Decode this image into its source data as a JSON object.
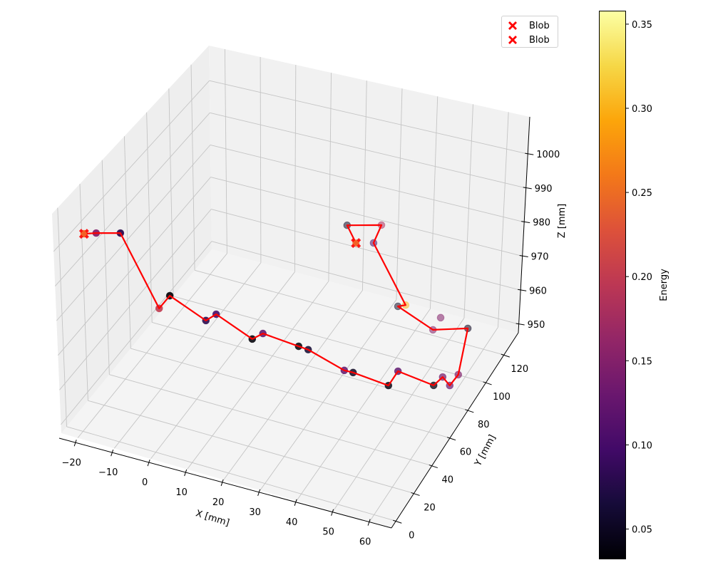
{
  "chart_data": {
    "type": "scatter3d",
    "xlabel": "X [mm]",
    "ylabel": "Y [mm]",
    "zlabel": "Z [mm]",
    "xlim": [
      -24.5,
      66
    ],
    "ylim": [
      -5,
      136
    ],
    "zlim": [
      947.5,
      1010.9
    ],
    "xticks": [
      -20,
      -10,
      0,
      10,
      20,
      30,
      40,
      50,
      60
    ],
    "yticks": [
      0,
      20,
      40,
      60,
      80,
      100,
      120
    ],
    "zticks": [
      950,
      960,
      970,
      980,
      990,
      1000
    ],
    "grid": true,
    "line_color": "#ff0000",
    "colormap": "inferno",
    "track": [
      {
        "x": -21.4,
        "y": 10,
        "z": 1001.3,
        "energy": 0.25
      },
      {
        "x": -18.1,
        "y": 10,
        "z": 1002.5,
        "energy": 0.15
      },
      {
        "x": -11.5,
        "y": 10,
        "z": 1004.5,
        "energy": 0.08
      },
      {
        "x": -3.4,
        "y": 20,
        "z": 980.8,
        "energy": 0.2
      },
      {
        "x": -0.5,
        "y": 20,
        "z": 985.4,
        "energy": 0.033
      },
      {
        "x": 8.1,
        "y": 25,
        "z": 978.7,
        "energy": 0.08
      },
      {
        "x": 10.9,
        "y": 25,
        "z": 981.4,
        "energy": 0.1
      },
      {
        "x": 19.5,
        "y": 30,
        "z": 974.7,
        "energy": 0.035
      },
      {
        "x": 22.4,
        "y": 30,
        "z": 977.2,
        "energy": 0.12
      },
      {
        "x": 30.9,
        "y": 35,
        "z": 974.0,
        "energy": 0.035
      },
      {
        "x": 33.5,
        "y": 35,
        "z": 973.8,
        "energy": 0.06
      },
      {
        "x": 42.1,
        "y": 40,
        "z": 968.3,
        "energy": 0.12
      },
      {
        "x": 44.5,
        "y": 40,
        "z": 968.4,
        "energy": 0.05
      },
      {
        "x": 52.9,
        "y": 45,
        "z": 965.1,
        "energy": 0.04
      },
      {
        "x": 55.5,
        "y": 45,
        "z": 970.1,
        "energy": 0.12
      },
      {
        "x": 60.3,
        "y": 65,
        "z": 959.3,
        "energy": 0.04
      },
      {
        "x": 60.3,
        "y": 75,
        "z": 957.7,
        "energy": 0.14
      },
      {
        "x": 61.0,
        "y": 80,
        "z": 953.4,
        "energy": 0.13
      },
      {
        "x": 62.1,
        "y": 85,
        "z": 954.9,
        "energy": 0.15
      },
      {
        "x": 56.1,
        "y": 120,
        "z": 952.5,
        "energy": 0.05
      },
      {
        "x": 46.6,
        "y": 120,
        "z": 949.2,
        "energy": 0.15
      },
      {
        "x": 34.6,
        "y": 130,
        "z": 948.4,
        "energy": 0.05
      },
      {
        "x": 36.7,
        "y": 130,
        "z": 949.4,
        "energy": 0.3
      },
      {
        "x": 29.2,
        "y": 125,
        "z": 967.4,
        "energy": 0.1
      },
      {
        "x": 31.35,
        "y": 125,
        "z": 973.3,
        "energy": 0.18
      },
      {
        "x": 22.0,
        "y": 125,
        "z": 970.4,
        "energy": 0.05
      },
      {
        "x": 24.4,
        "y": 125,
        "z": 965.9,
        "energy": 0.25
      }
    ],
    "extra_points": [
      {
        "x": 48.7,
        "y": 120,
        "z": 953.4,
        "energy": 0.15
      }
    ],
    "blobs": [
      {
        "x": -21.4,
        "y": 10,
        "z": 1001.3,
        "label": "Blob"
      },
      {
        "x": 24.4,
        "y": 125,
        "z": 965.9,
        "label": "Blob"
      }
    ],
    "blob_color": "#ff0000",
    "legend": {
      "position": "top-right",
      "entries": [
        "Blob",
        "Blob"
      ]
    },
    "colorbar": {
      "label": "Energy",
      "range": [
        0.032,
        0.358
      ],
      "ticks": [
        0.05,
        0.1,
        0.15,
        0.2,
        0.25,
        0.3,
        0.35
      ],
      "tick_labels": [
        "0.05",
        "0.10",
        "0.15",
        "0.20",
        "0.25",
        "0.30",
        "0.35"
      ]
    }
  }
}
